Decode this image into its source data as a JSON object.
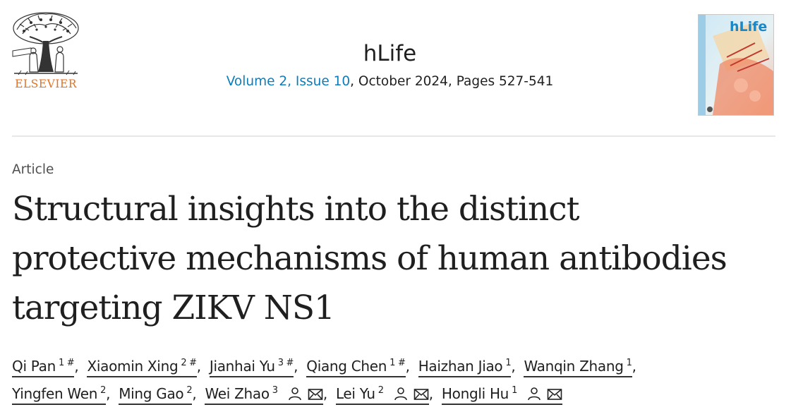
{
  "header": {
    "publisher": "ELSEVIER",
    "journal": "hLife",
    "issue_link": "Volume 2, Issue 10",
    "issue_rest": ", October 2024, Pages 527-541",
    "cover_title": "hLife"
  },
  "article": {
    "type": "Article",
    "title_lines": [
      "Structural insights into the distinct",
      "protective mechanisms of human antibodies",
      "targeting ZIKV NS1"
    ]
  },
  "authors": [
    {
      "name": "Qi Pan",
      "sup": "1 #"
    },
    {
      "name": "Xiaomin Xing",
      "sup": "2 #"
    },
    {
      "name": "Jianhai Yu",
      "sup": "3 #"
    },
    {
      "name": "Qiang Chen",
      "sup": "1 #"
    },
    {
      "name": "Haizhan Jiao",
      "sup": "1"
    },
    {
      "name": "Wanqin Zhang",
      "sup": "1"
    },
    {
      "name": "Yingfen Wen",
      "sup": "2"
    },
    {
      "name": "Ming Gao",
      "sup": "2"
    },
    {
      "name": "Wei Zhao",
      "sup": "3"
    },
    {
      "name": "Lei Yu",
      "sup": "2"
    },
    {
      "name": "Hongli Hu",
      "sup": "1"
    }
  ],
  "colors": {
    "publisher_orange": "#e9711c",
    "link_blue": "#0c7dbb"
  },
  "icons": [
    "elsevier-tree-logo",
    "person-icon",
    "envelope-icon"
  ]
}
